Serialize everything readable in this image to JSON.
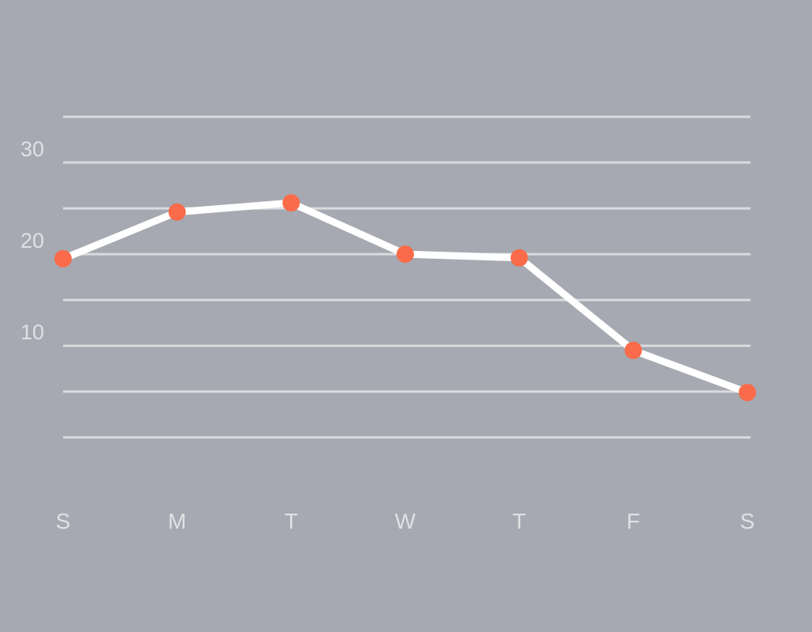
{
  "chart_data": {
    "type": "line",
    "title": "",
    "xlabel": "",
    "ylabel": "",
    "categories": [
      "S",
      "M",
      "T",
      "W",
      "T",
      "F",
      "S"
    ],
    "series": [
      {
        "values": [
          19.5,
          24.6,
          25.6,
          20,
          19.6,
          9.5,
          4.9
        ]
      }
    ],
    "ylim": [
      -6,
      35
    ],
    "yticks": [
      10,
      20,
      30
    ],
    "gridlines": [
      0,
      5,
      10,
      15,
      20,
      25,
      30,
      35
    ],
    "grid": true,
    "legend": "none",
    "colors": {
      "background": "#a6a9b1",
      "grid": "#d9dbdf",
      "line": "#ffffff",
      "marker": "#f96b4a",
      "label": "#dfe1e4"
    }
  }
}
